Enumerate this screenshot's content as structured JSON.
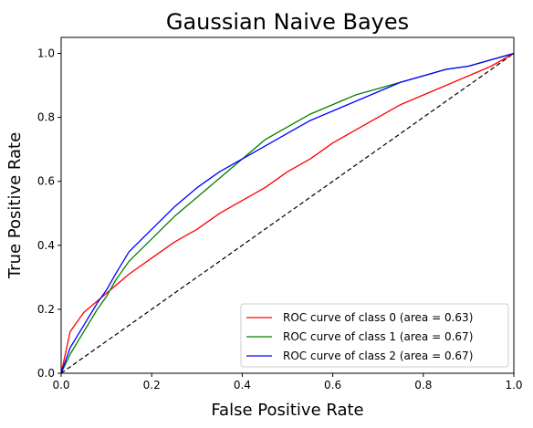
{
  "chart_data": {
    "type": "line",
    "title": "Gaussian Naive Bayes",
    "xlabel": "False Positive Rate",
    "ylabel": "True Positive Rate",
    "xlim": [
      0.0,
      1.0
    ],
    "ylim": [
      0.0,
      1.05
    ],
    "xticks": [
      "0.0",
      "0.2",
      "0.4",
      "0.6",
      "0.8",
      "1.0"
    ],
    "yticks": [
      "0.0",
      "0.2",
      "0.4",
      "0.6",
      "0.8",
      "1.0"
    ],
    "legend_position": "lower-right",
    "grid": false,
    "series": [
      {
        "name": "ROC curve of class 0 (area = 0.63)",
        "color": "#ff0000",
        "x": [
          0.0,
          0.02,
          0.05,
          0.1,
          0.15,
          0.2,
          0.25,
          0.3,
          0.35,
          0.4,
          0.45,
          0.5,
          0.55,
          0.6,
          0.65,
          0.7,
          0.75,
          0.8,
          0.85,
          0.9,
          0.95,
          1.0
        ],
        "y": [
          0.0,
          0.13,
          0.19,
          0.25,
          0.31,
          0.36,
          0.41,
          0.45,
          0.5,
          0.54,
          0.58,
          0.63,
          0.67,
          0.72,
          0.76,
          0.8,
          0.84,
          0.87,
          0.9,
          0.93,
          0.96,
          1.0
        ]
      },
      {
        "name": "ROC curve of class 1 (area = 0.67)",
        "color": "#008000",
        "x": [
          0.0,
          0.02,
          0.05,
          0.08,
          0.1,
          0.12,
          0.15,
          0.2,
          0.25,
          0.3,
          0.35,
          0.4,
          0.45,
          0.5,
          0.55,
          0.6,
          0.65,
          0.7,
          0.75,
          0.8,
          0.85,
          0.9,
          0.95,
          1.0
        ],
        "y": [
          0.0,
          0.06,
          0.13,
          0.2,
          0.24,
          0.29,
          0.35,
          0.42,
          0.49,
          0.55,
          0.61,
          0.67,
          0.73,
          0.77,
          0.81,
          0.84,
          0.87,
          0.89,
          0.91,
          0.93,
          0.95,
          0.96,
          0.98,
          1.0
        ]
      },
      {
        "name": "ROC curve of class 2 (area = 0.67)",
        "color": "#0000ff",
        "x": [
          0.0,
          0.02,
          0.05,
          0.08,
          0.1,
          0.12,
          0.15,
          0.2,
          0.25,
          0.3,
          0.35,
          0.4,
          0.45,
          0.5,
          0.55,
          0.6,
          0.65,
          0.7,
          0.75,
          0.8,
          0.85,
          0.9,
          0.95,
          1.0
        ],
        "y": [
          0.0,
          0.08,
          0.15,
          0.22,
          0.26,
          0.31,
          0.38,
          0.45,
          0.52,
          0.58,
          0.63,
          0.67,
          0.71,
          0.75,
          0.79,
          0.82,
          0.85,
          0.88,
          0.91,
          0.93,
          0.95,
          0.96,
          0.98,
          1.0
        ]
      }
    ],
    "reference_line": {
      "x": [
        0.0,
        1.0
      ],
      "y": [
        0.0,
        1.0
      ],
      "color": "#000000",
      "style": "dashed"
    }
  }
}
